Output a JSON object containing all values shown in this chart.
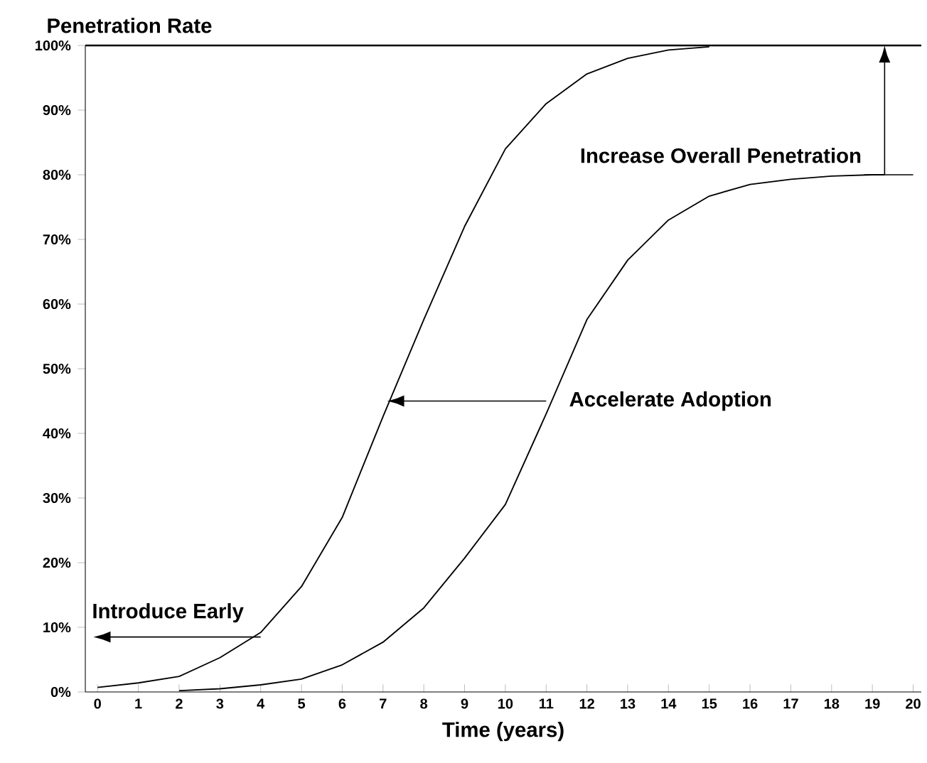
{
  "chart_data": {
    "type": "line",
    "ylabel": "Penetration Rate",
    "xlabel": "Time (years)",
    "xlim": [
      -0.3,
      20.2
    ],
    "ylim": [
      0,
      100
    ],
    "xticks": [
      0,
      1,
      2,
      3,
      4,
      5,
      6,
      7,
      8,
      9,
      10,
      11,
      12,
      13,
      14,
      15,
      16,
      17,
      18,
      19,
      20
    ],
    "yticks": [
      {
        "value": 0,
        "label": "0%"
      },
      {
        "value": 10,
        "label": "10%"
      },
      {
        "value": 20,
        "label": "20%"
      },
      {
        "value": 30,
        "label": "30%"
      },
      {
        "value": 40,
        "label": "40%"
      },
      {
        "value": 50,
        "label": "50%"
      },
      {
        "value": 60,
        "label": "60%"
      },
      {
        "value": 70,
        "label": "70%"
      },
      {
        "value": 80,
        "label": "80%"
      },
      {
        "value": 90,
        "label": "90%"
      },
      {
        "value": 100,
        "label": "100%"
      }
    ],
    "series": [
      {
        "color": "#000000",
        "x": [
          0,
          1,
          2,
          3,
          4,
          5,
          6,
          7,
          8,
          9,
          10,
          11,
          12,
          13,
          14,
          15
        ],
        "values": [
          0.7,
          1.4,
          2.4,
          5.3,
          9.2,
          16.3,
          27,
          42.6,
          57.6,
          72,
          84,
          91,
          95.6,
          98,
          99.3,
          99.8
        ]
      },
      {
        "color": "#000000",
        "x": [
          2,
          3,
          4,
          5,
          6,
          7,
          8,
          9,
          10,
          11,
          12,
          13,
          14,
          15,
          16,
          17,
          18,
          19,
          19.3
        ],
        "values": [
          0.2,
          0.5,
          1.1,
          2,
          4.2,
          7.7,
          13,
          20.7,
          29,
          43,
          57.6,
          66.8,
          73,
          76.7,
          78.5,
          79.3,
          79.8,
          80,
          80
        ]
      }
    ],
    "ref_lines": [
      {
        "axis": "y",
        "value": 100,
        "color": "#000000"
      }
    ],
    "annotations": [
      {
        "text": "Introduce Early",
        "x": 4,
        "y": 8.5
      },
      {
        "text": "Accelerate Adoption",
        "x": 11,
        "y": 45
      },
      {
        "text": "Increase Overall Penetration",
        "x": 19.3,
        "y": 80
      }
    ],
    "grid": false,
    "marker": "none",
    "line_style": "solid"
  }
}
